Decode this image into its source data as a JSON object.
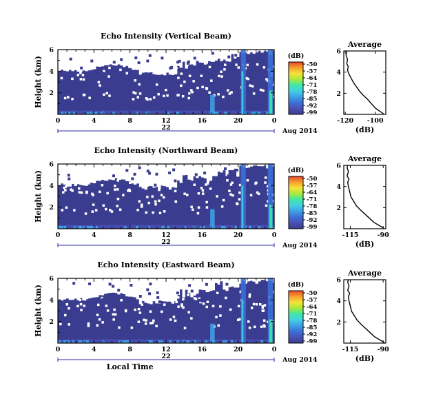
{
  "colors": {
    "background": "#3a3d8f",
    "colormap": [
      "#3a3d8f",
      "#4a50b5",
      "#3b6fd6",
      "#3ea0e6",
      "#42d0e0",
      "#3fe6a8",
      "#a8e83c",
      "#f6e33a",
      "#f6a12f",
      "#e8452c"
    ],
    "axis": "#000000",
    "average_line": "#000000"
  },
  "chart_data": [
    {
      "type": "heatmap",
      "title": "Echo Intensity (Vertical Beam)",
      "ylabel": "Height (km)",
      "ylim": [
        0,
        6
      ],
      "yticks": [
        "2",
        "4",
        "6"
      ],
      "xlim": [
        0,
        24
      ],
      "xticks": [
        "0",
        "4",
        "8",
        "12",
        "16",
        "20",
        "0"
      ],
      "day_label": "22",
      "date_label": "Aug 2014",
      "colorbar": {
        "unit": "(dB)",
        "ticks": [
          "-50",
          "-57",
          "-64",
          "-71",
          "-78",
          "-85",
          "-92",
          "-99"
        ],
        "range": [
          -99,
          -50
        ]
      },
      "wet_time": [
        20.3,
        23.3
      ],
      "average": {
        "title": "Average",
        "xlabel": "(dB)",
        "xticks": [
          "-120",
          "-100"
        ],
        "xlim": [
          -121,
          -93
        ],
        "yticks": [
          "2",
          "4",
          "6"
        ],
        "ylim": [
          0,
          6
        ],
        "profile": [
          [
            -94.5,
            0.05
          ],
          [
            -97.0,
            0.3
          ],
          [
            -100.0,
            0.6
          ],
          [
            -102.5,
            1.0
          ],
          [
            -105.0,
            1.4
          ],
          [
            -108.0,
            1.8
          ],
          [
            -110.5,
            2.2
          ],
          [
            -112.5,
            2.6
          ],
          [
            -114.5,
            3.0
          ],
          [
            -116.0,
            3.4
          ],
          [
            -117.5,
            3.8
          ],
          [
            -118.5,
            4.2
          ],
          [
            -118.0,
            4.5
          ],
          [
            -119.0,
            4.8
          ],
          [
            -118.5,
            5.2
          ],
          [
            -119.5,
            5.6
          ],
          [
            -119.0,
            6.0
          ]
        ]
      }
    },
    {
      "type": "heatmap",
      "title": "Echo Intensity (Northward Beam)",
      "ylabel": "Height (km)",
      "ylim": [
        0,
        6
      ],
      "yticks": [
        "2",
        "4",
        "6"
      ],
      "xlim": [
        0,
        24
      ],
      "xticks": [
        "0",
        "4",
        "8",
        "12",
        "16",
        "20",
        "0"
      ],
      "day_label": "22",
      "date_label": "Aug 2014",
      "colorbar": {
        "unit": "(dB)",
        "ticks": [
          "-50",
          "-57",
          "-64",
          "-71",
          "-78",
          "-85",
          "-92",
          "-99"
        ],
        "range": [
          -99,
          -50
        ]
      },
      "wet_time": [
        20.3,
        23.3
      ],
      "average": {
        "title": "Average",
        "xlabel": "(dB)",
        "xticks": [
          "-115",
          "-90"
        ],
        "xlim": [
          -120,
          -88
        ],
        "yticks": [
          "2",
          "4",
          "6"
        ],
        "ylim": [
          0,
          6
        ],
        "profile": [
          [
            -89.5,
            0.05
          ],
          [
            -93.0,
            0.3
          ],
          [
            -97.0,
            0.6
          ],
          [
            -100.5,
            1.0
          ],
          [
            -104.0,
            1.4
          ],
          [
            -107.5,
            1.8
          ],
          [
            -110.5,
            2.2
          ],
          [
            -112.5,
            2.6
          ],
          [
            -114.5,
            3.0
          ],
          [
            -115.5,
            3.5
          ],
          [
            -116.5,
            4.0
          ],
          [
            -117.0,
            4.4
          ],
          [
            -116.0,
            4.7
          ],
          [
            -117.5,
            5.0
          ],
          [
            -116.5,
            5.4
          ],
          [
            -117.5,
            5.8
          ],
          [
            -117.0,
            6.0
          ]
        ]
      }
    },
    {
      "type": "heatmap",
      "title": "Echo Intensity (Eastward Beam)",
      "ylabel": "Height (km)",
      "ylim": [
        0,
        6
      ],
      "yticks": [
        "2",
        "4",
        "6"
      ],
      "xlim": [
        0,
        24
      ],
      "xticks": [
        "0",
        "4",
        "8",
        "12",
        "16",
        "20",
        "0"
      ],
      "day_label": "22",
      "date_label": "Aug 2014",
      "xlabel": "Local Time",
      "colorbar": {
        "unit": "(dB)",
        "ticks": [
          "-50",
          "-57",
          "-64",
          "-71",
          "-78",
          "-85",
          "-92",
          "-99"
        ],
        "range": [
          -99,
          -50
        ]
      },
      "wet_time": [
        20.3,
        23.3
      ],
      "average": {
        "title": "Average",
        "xlabel": "(dB)",
        "xticks": [
          "-115",
          "-90"
        ],
        "xlim": [
          -120,
          -88
        ],
        "yticks": [
          "2",
          "4",
          "6"
        ],
        "ylim": [
          0,
          6
        ],
        "profile": [
          [
            -89.0,
            0.05
          ],
          [
            -92.5,
            0.3
          ],
          [
            -96.5,
            0.6
          ],
          [
            -100.0,
            1.0
          ],
          [
            -103.5,
            1.4
          ],
          [
            -107.0,
            1.8
          ],
          [
            -110.0,
            2.2
          ],
          [
            -112.0,
            2.6
          ],
          [
            -114.0,
            3.0
          ],
          [
            -115.0,
            3.5
          ],
          [
            -116.0,
            4.0
          ],
          [
            -116.5,
            4.4
          ],
          [
            -115.5,
            4.7
          ],
          [
            -117.0,
            5.0
          ],
          [
            -116.0,
            5.4
          ],
          [
            -117.0,
            5.8
          ],
          [
            -116.5,
            6.0
          ]
        ]
      }
    }
  ]
}
